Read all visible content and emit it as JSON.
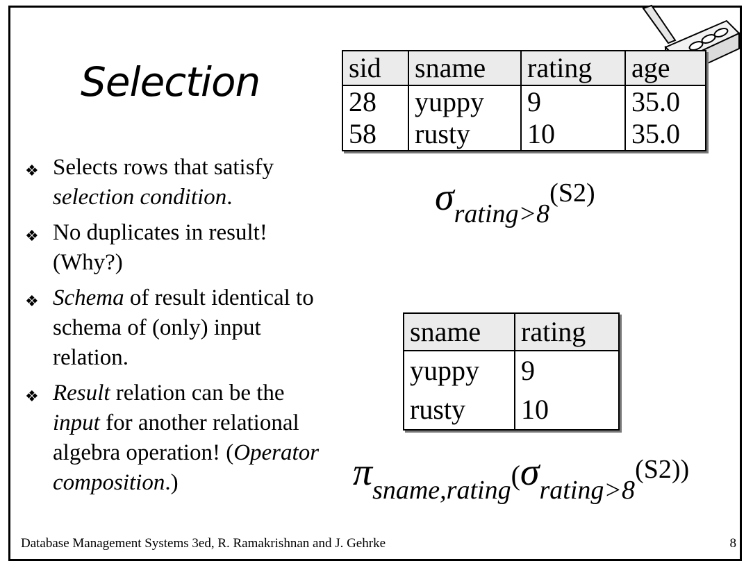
{
  "slide": {
    "title": "Selection",
    "bullets": [
      {
        "parts": [
          {
            "text": "Selects rows that satisfy ",
            "italic": false
          },
          {
            "text": "selection condition",
            "italic": true
          },
          {
            "text": ".",
            "italic": false
          }
        ]
      },
      {
        "parts": [
          {
            "text": "No duplicates in result! (Why?)",
            "italic": false
          }
        ]
      },
      {
        "parts": [
          {
            "text": "Schema",
            "italic": true
          },
          {
            "text": " of result identical to schema of (only) input relation.",
            "italic": false
          }
        ]
      },
      {
        "parts": [
          {
            "text": "Result",
            "italic": true
          },
          {
            "text": " relation can be the ",
            "italic": false
          },
          {
            "text": "input",
            "italic": true
          },
          {
            "text": " for another relational algebra operation!  (",
            "italic": false
          },
          {
            "text": "Operator composition",
            "italic": true
          },
          {
            "text": ".)",
            "italic": false
          }
        ]
      }
    ],
    "bullet_glyph": "❖"
  },
  "table_top": {
    "headers": [
      "sid",
      "sname",
      "rating",
      "age"
    ],
    "rows": [
      [
        "28",
        "yuppy",
        "9",
        "35.0"
      ],
      [
        "58",
        "rusty",
        "10",
        "35.0"
      ]
    ]
  },
  "expr1": {
    "sigma": "σ",
    "sub": "rating>8",
    "sup": "(S2)"
  },
  "table_bottom": {
    "headers": [
      "sname",
      "rating"
    ],
    "rows": [
      [
        "yuppy",
        "9"
      ],
      [
        "rusty",
        "10"
      ]
    ]
  },
  "expr2": {
    "pi": "π",
    "pi_sub": "sname,rating",
    "open": "(",
    "sigma": "σ",
    "sigma_sub": "rating>8",
    "sup": "(S2))"
  },
  "footer": {
    "text": "Database Management Systems 3ed,  R. Ramakrishnan and J. Gehrke",
    "page": "8"
  }
}
